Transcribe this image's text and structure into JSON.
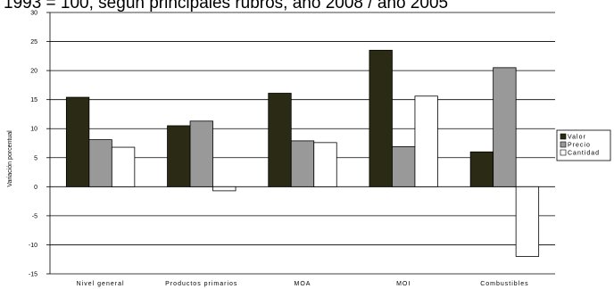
{
  "chart_data": {
    "type": "bar",
    "title": "1993 = 100, según principales rubros, año 2008 / año 2005",
    "ylabel": "Variación porcentual",
    "xlabel": "",
    "ylim": [
      -15,
      30
    ],
    "yticks": [
      30,
      25,
      20,
      15,
      10,
      5,
      0,
      -5,
      -10,
      -15
    ],
    "grid": true,
    "legend_position": "right",
    "categories": [
      "Nivel general",
      "Productos primarios",
      "MOA",
      "MOI",
      "Combustibles"
    ],
    "series": [
      {
        "name": "Valor",
        "color": "#2b2b15",
        "values": [
          15.4,
          10.5,
          16.1,
          23.5,
          6.0
        ]
      },
      {
        "name": "Precio",
        "color": "#999999",
        "values": [
          8.1,
          11.3,
          7.9,
          6.9,
          20.5
        ]
      },
      {
        "name": "Cantidad",
        "color": "#ffffff",
        "values": [
          6.8,
          -0.7,
          7.6,
          15.6,
          -12.0
        ]
      }
    ]
  }
}
